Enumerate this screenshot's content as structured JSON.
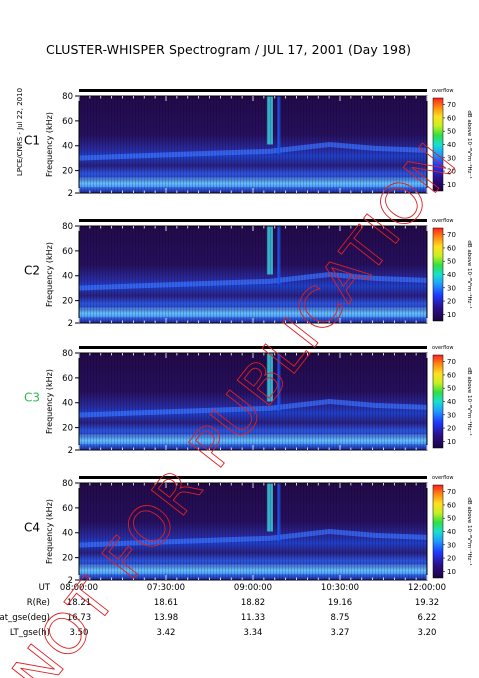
{
  "title": "CLUSTER-WHISPER Spectrogram / JUL 17, 2001 (Day 198)",
  "side_note": "LPCE/CNRS - Jul 22, 2010",
  "watermark": "NOT FOR PUBLICATION",
  "colorbar": {
    "top_label": "overflow",
    "label": "dB above 10⁻⁸V²m⁻²Hz⁻¹",
    "ticks": [
      10,
      20,
      30,
      40,
      50,
      60,
      70
    ]
  },
  "colors": {
    "low": "#1b0440",
    "high": "#ff1f1f",
    "c3_label": "#2db84a",
    "watermark": "#e02020"
  },
  "chart_data": {
    "type": "heatmap",
    "ylabel": "Frequency (kHz)",
    "y_ticks": [
      2,
      20,
      40,
      60,
      80
    ],
    "ylim": [
      2,
      80
    ],
    "x_ticks": [
      "08:00:00",
      "07:30:00",
      "09:00:00",
      "10:30:00",
      "12:00:00"
    ],
    "panels": [
      {
        "name": "C1"
      },
      {
        "name": "C2"
      },
      {
        "name": "C3"
      },
      {
        "name": "C4"
      }
    ]
  },
  "ephemeris": {
    "rows": [
      {
        "label": "UT",
        "values": [
          "08:00:00",
          "07:30:00",
          "09:00:00",
          "10:30:00",
          "12:00:00"
        ]
      },
      {
        "label": "R(Re)",
        "values": [
          "18.21",
          "18.61",
          "18.82",
          "19.16",
          "19.32"
        ]
      },
      {
        "label": "Lat_gse(deg)",
        "values": [
          "16.73",
          "13.98",
          "11.33",
          "8.75",
          "6.22"
        ]
      },
      {
        "label": "LT_gse(h)",
        "values": [
          "3.50",
          "3.42",
          "3.34",
          "3.27",
          "3.20"
        ]
      }
    ]
  }
}
